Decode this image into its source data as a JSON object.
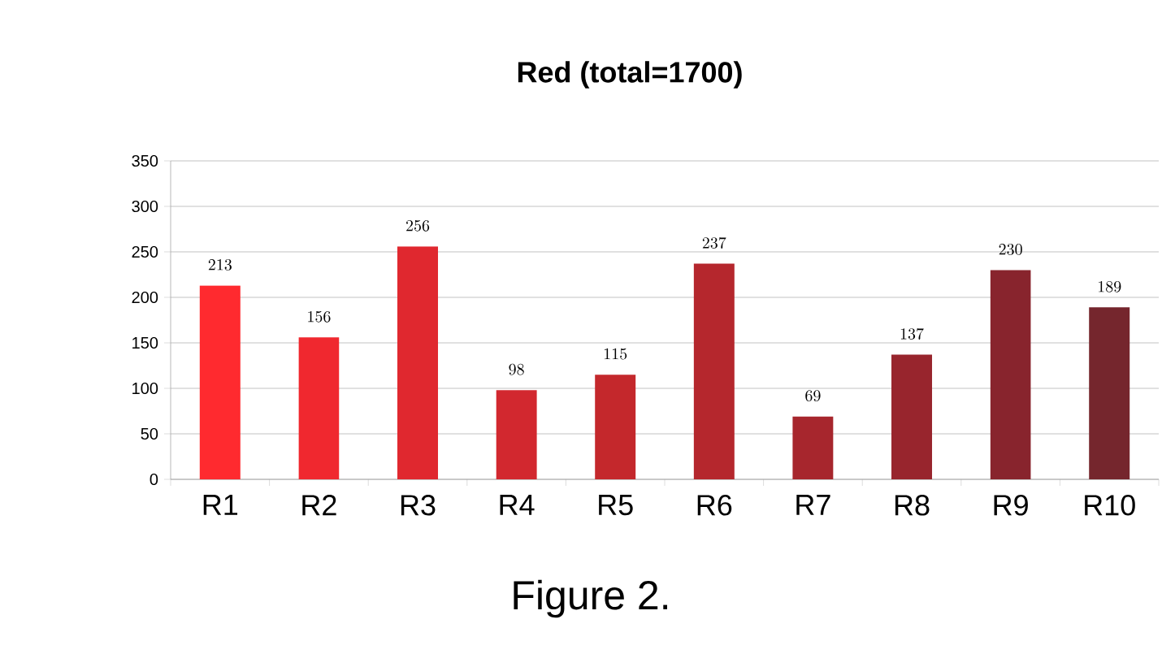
{
  "chart_data": {
    "type": "bar",
    "title": "Red (total=1700)",
    "categories": [
      "R1",
      "R2",
      "R3",
      "R4",
      "R5",
      "R6",
      "R7",
      "R8",
      "R9",
      "R10"
    ],
    "values": [
      213,
      156,
      256,
      98,
      115,
      237,
      69,
      137,
      230,
      189
    ],
    "colors": [
      "#ff2a2f",
      "#f0282f",
      "#e0282f",
      "#d2282f",
      "#c4282c",
      "#b5272d",
      "#a7262d",
      "#98252d",
      "#88242d",
      "#75262d"
    ],
    "ylim": [
      0,
      350
    ],
    "yticks": [
      0,
      50,
      100,
      150,
      200,
      250,
      300,
      350
    ],
    "grid": "y",
    "data_labels": true,
    "annotations": [
      "Figure 2."
    ]
  }
}
